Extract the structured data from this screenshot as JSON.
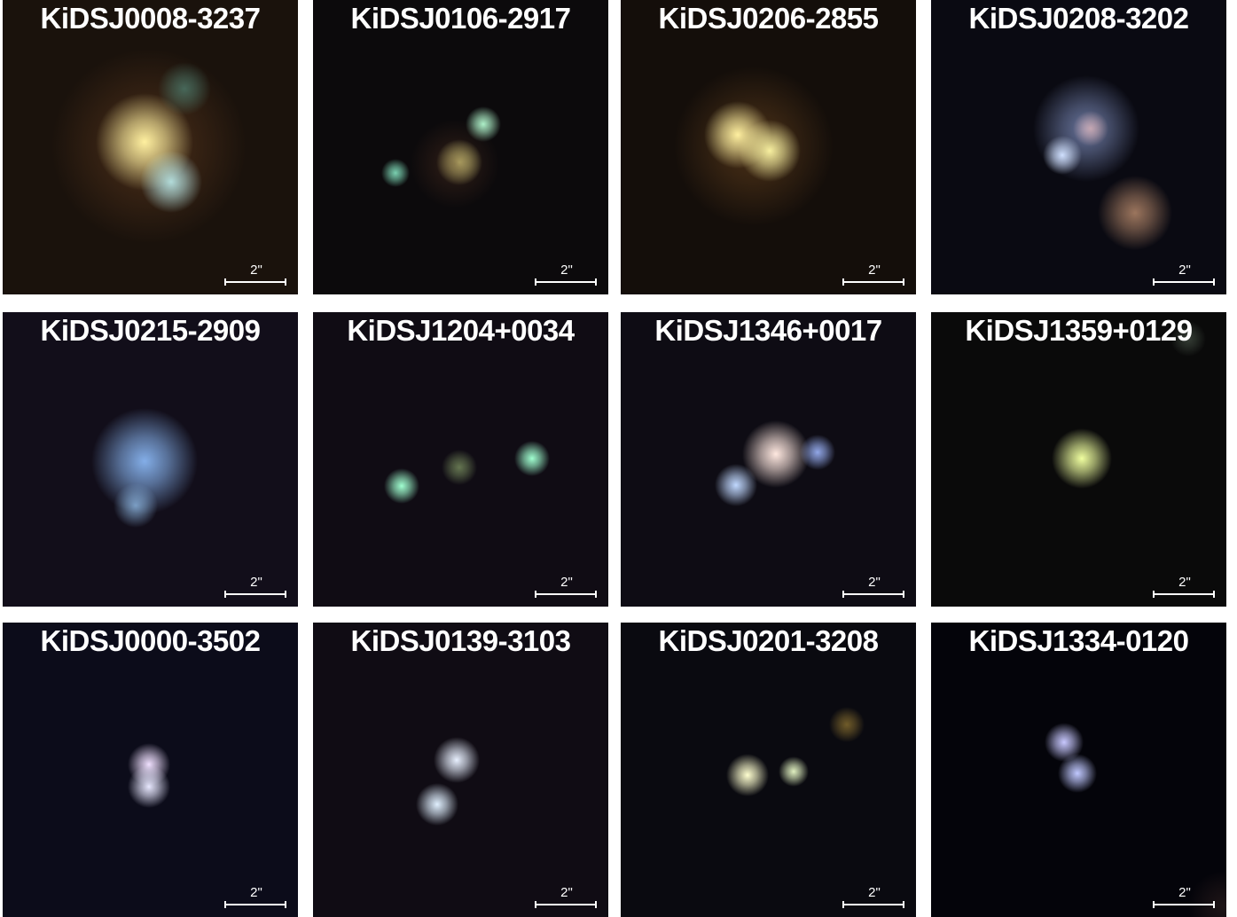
{
  "panels": [
    {
      "name": "KiDSJ0008-3237",
      "scale": "2\""
    },
    {
      "name": "KiDSJ0106-2917",
      "scale": "2\""
    },
    {
      "name": "KiDSJ0206-2855",
      "scale": "2\""
    },
    {
      "name": "KiDSJ0208-3202",
      "scale": "2\""
    },
    {
      "name": "KiDSJ0215-2909",
      "scale": "2\""
    },
    {
      "name": "KiDSJ1204+0034",
      "scale": "2\""
    },
    {
      "name": "KiDSJ1346+0017",
      "scale": "2\""
    },
    {
      "name": "KiDSJ1359+0129",
      "scale": "2\""
    },
    {
      "name": "KiDSJ0000-3502",
      "scale": "2\""
    },
    {
      "name": "KiDSJ0139-3103",
      "scale": "2\""
    },
    {
      "name": "KiDSJ0201-3208",
      "scale": "2\""
    },
    {
      "name": "KiDSJ1334-0120",
      "scale": "2\""
    }
  ]
}
